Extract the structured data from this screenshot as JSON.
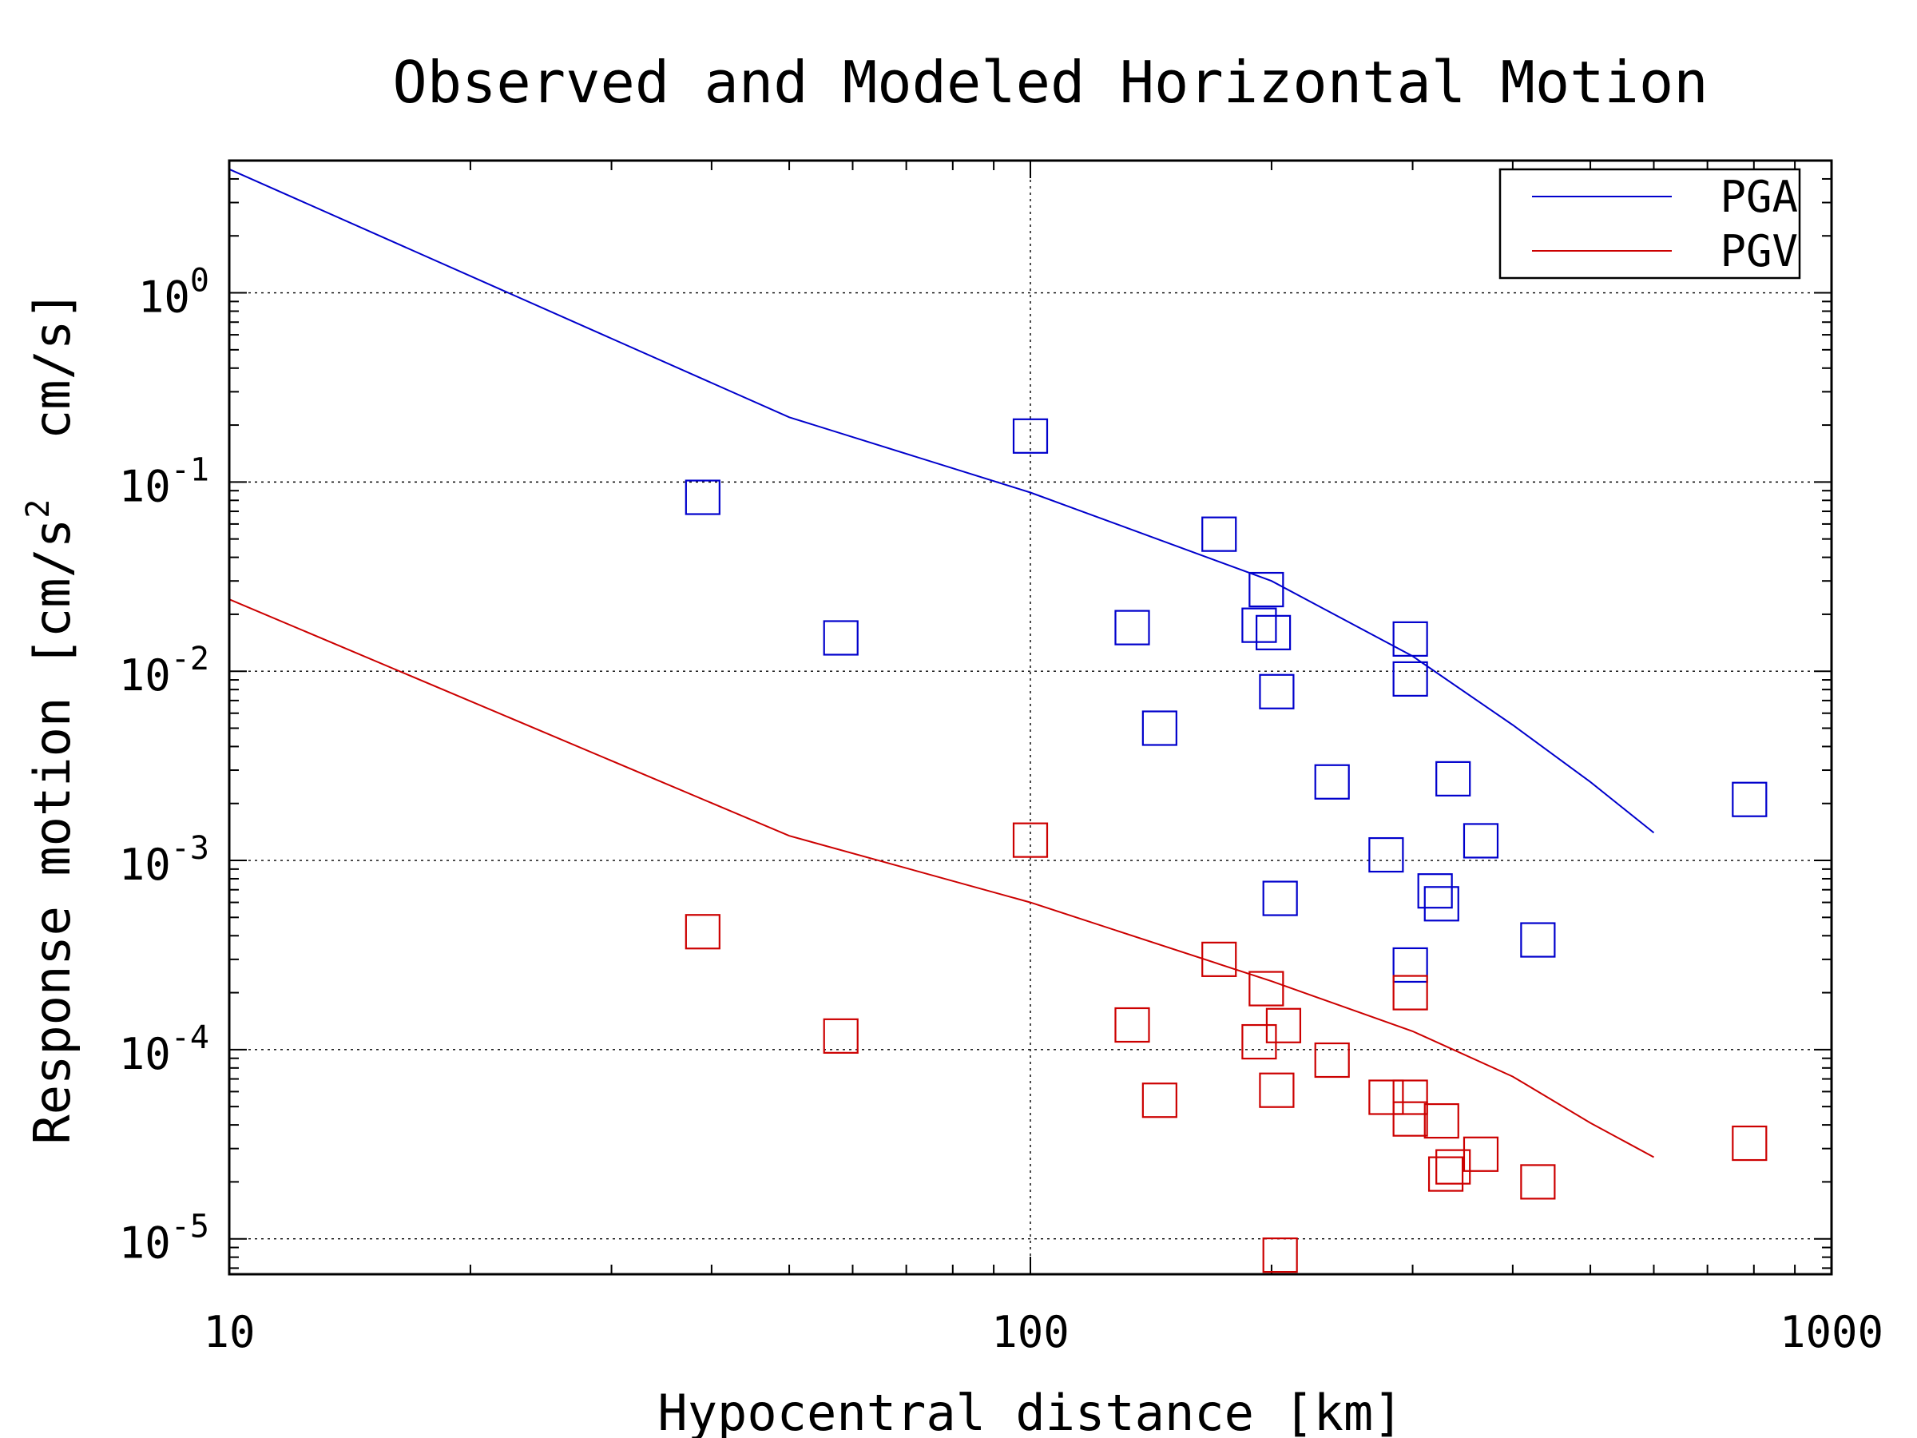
{
  "chart_data": {
    "type": "scatter",
    "title": "Observed and Modeled Horizontal Motion",
    "xlabel": "Hypocentral distance [km]",
    "ylabel": "Response motion [cm/s² cm/s]",
    "ylabel_parts": [
      "Response motion [cm/s",
      "2",
      "  cm/s]"
    ],
    "x_scale": "log",
    "y_scale": "log",
    "xlim": [
      10,
      1000
    ],
    "ylim": [
      6.5e-06,
      5
    ],
    "x_ticks": [
      {
        "value": 10,
        "label": "10"
      },
      {
        "value": 100,
        "label": "100"
      },
      {
        "value": 1000,
        "label": "1000"
      }
    ],
    "y_ticks": [
      {
        "value": 1e-05,
        "base": "10",
        "exp": "-5"
      },
      {
        "value": 0.0001,
        "base": "10",
        "exp": "-4"
      },
      {
        "value": 0.001,
        "base": "10",
        "exp": "-3"
      },
      {
        "value": 0.01,
        "base": "10",
        "exp": "-2"
      },
      {
        "value": 0.1,
        "base": "10",
        "exp": "-1"
      },
      {
        "value": 1,
        "base": "10",
        "exp": "0"
      }
    ],
    "grid": true,
    "legend_position": "top-right",
    "series": [
      {
        "name": "PGA",
        "color": "#0000cc",
        "model": {
          "x": [
            10,
            50,
            100,
            200,
            300,
            400,
            500,
            600
          ],
          "y": [
            4.5,
            0.22,
            0.088,
            0.03,
            0.012,
            0.0052,
            0.0026,
            0.0014
          ]
        },
        "observed": [
          {
            "x": 39,
            "y": 0.083
          },
          {
            "x": 58,
            "y": 0.015
          },
          {
            "x": 100,
            "y": 0.175
          },
          {
            "x": 134,
            "y": 0.017
          },
          {
            "x": 145,
            "y": 0.005
          },
          {
            "x": 172,
            "y": 0.053
          },
          {
            "x": 193,
            "y": 0.0175
          },
          {
            "x": 197,
            "y": 0.027
          },
          {
            "x": 201,
            "y": 0.016
          },
          {
            "x": 203,
            "y": 0.0078
          },
          {
            "x": 205,
            "y": 0.00063
          },
          {
            "x": 238,
            "y": 0.0026
          },
          {
            "x": 278,
            "y": 0.00107
          },
          {
            "x": 298,
            "y": 0.0148
          },
          {
            "x": 298,
            "y": 0.0091
          },
          {
            "x": 298,
            "y": 0.00028
          },
          {
            "x": 320,
            "y": 0.00069
          },
          {
            "x": 326,
            "y": 0.00059
          },
          {
            "x": 337,
            "y": 0.0027
          },
          {
            "x": 365,
            "y": 0.00127
          },
          {
            "x": 430,
            "y": 0.00038
          },
          {
            "x": 790,
            "y": 0.0021
          }
        ]
      },
      {
        "name": "PGV",
        "color": "#cc0000",
        "model": {
          "x": [
            10,
            50,
            100,
            200,
            300,
            400,
            500,
            600
          ],
          "y": [
            0.024,
            0.00135,
            0.0006,
            0.00023,
            0.000125,
            7.2e-05,
            4.1e-05,
            2.7e-05
          ]
        },
        "observed": [
          {
            "x": 39,
            "y": 0.00042
          },
          {
            "x": 58,
            "y": 0.000118
          },
          {
            "x": 100,
            "y": 0.00128
          },
          {
            "x": 134,
            "y": 0.000135
          },
          {
            "x": 145,
            "y": 5.4e-05
          },
          {
            "x": 172,
            "y": 0.0003
          },
          {
            "x": 193,
            "y": 0.00011
          },
          {
            "x": 197,
            "y": 0.00021
          },
          {
            "x": 203,
            "y": 6.1e-05
          },
          {
            "x": 205,
            "y": 8.2e-06
          },
          {
            "x": 207,
            "y": 0.000134
          },
          {
            "x": 238,
            "y": 8.8e-05
          },
          {
            "x": 278,
            "y": 5.6e-05
          },
          {
            "x": 298,
            "y": 0.0002
          },
          {
            "x": 298,
            "y": 5.6e-05
          },
          {
            "x": 298,
            "y": 4.3e-05
          },
          {
            "x": 326,
            "y": 4.2e-05
          },
          {
            "x": 330,
            "y": 2.2e-05
          },
          {
            "x": 337,
            "y": 2.4e-05
          },
          {
            "x": 365,
            "y": 2.8e-05
          },
          {
            "x": 430,
            "y": 2e-05
          },
          {
            "x": 790,
            "y": 3.2e-05
          }
        ]
      }
    ]
  }
}
